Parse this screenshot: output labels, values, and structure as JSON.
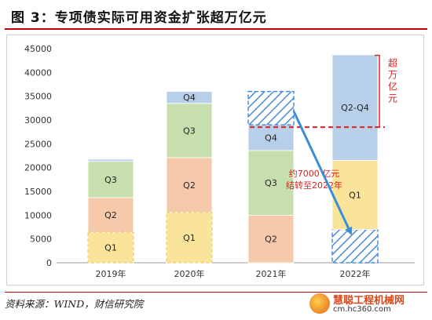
{
  "figure_title": "图 3：专项债实际可用资金扩张超万亿元",
  "source_note": "资料来源：WIND，财信研究院",
  "watermark": {
    "brand": "慧聪工程机械网",
    "url": "cm.hc360.com"
  },
  "colors": {
    "Q1": "#fae49a",
    "Q2": "#f6c9ab",
    "Q3": "#c7dfae",
    "Q4": "#b8cfe9",
    "Q2-Q4": "#b8cfe9",
    "hatch": "#4a8bd4",
    "annotation": "#e02020",
    "arrow": "#3a8ed8"
  },
  "chart_data": {
    "type": "bar",
    "stacked": true,
    "categories": [
      "2019年",
      "2020年",
      "2021年",
      "2022年"
    ],
    "ylim": [
      0,
      45000
    ],
    "yticks": [
      0,
      5000,
      10000,
      15000,
      20000,
      25000,
      30000,
      35000,
      40000,
      45000
    ],
    "grid": false,
    "stacks": [
      {
        "category": "2019年",
        "segments": [
          {
            "label": "Q1",
            "value": 6400
          },
          {
            "label": "Q2",
            "value": 7300
          },
          {
            "label": "Q3",
            "value": 7600
          },
          {
            "label": "",
            "value": 450,
            "series": "Q4"
          }
        ]
      },
      {
        "category": "2020年",
        "segments": [
          {
            "label": "Q1",
            "value": 10600
          },
          {
            "label": "Q2",
            "value": 11500
          },
          {
            "label": "Q3",
            "value": 11400
          },
          {
            "label": "Q4",
            "value": 2500
          }
        ]
      },
      {
        "category": "2021年",
        "segments": [
          {
            "label": "",
            "value": 0,
            "series": "Q1"
          },
          {
            "label": "Q2",
            "value": 10000
          },
          {
            "label": "Q3",
            "value": 13600
          },
          {
            "label": "Q4",
            "value": 5400
          },
          {
            "label": "",
            "value": 7000,
            "series": "hatch"
          }
        ]
      },
      {
        "category": "2022年",
        "segments": [
          {
            "label": "",
            "value": 7000,
            "series": "hatch"
          },
          {
            "label": "Q1",
            "value": 14500
          },
          {
            "label": "Q2-Q4",
            "value": 22200
          }
        ]
      }
    ],
    "reference_line": {
      "value": 28500,
      "label": "超万亿元"
    },
    "annotations": [
      {
        "text_lines": [
          "约7000 亿元",
          "结转至2022年"
        ]
      }
    ]
  }
}
